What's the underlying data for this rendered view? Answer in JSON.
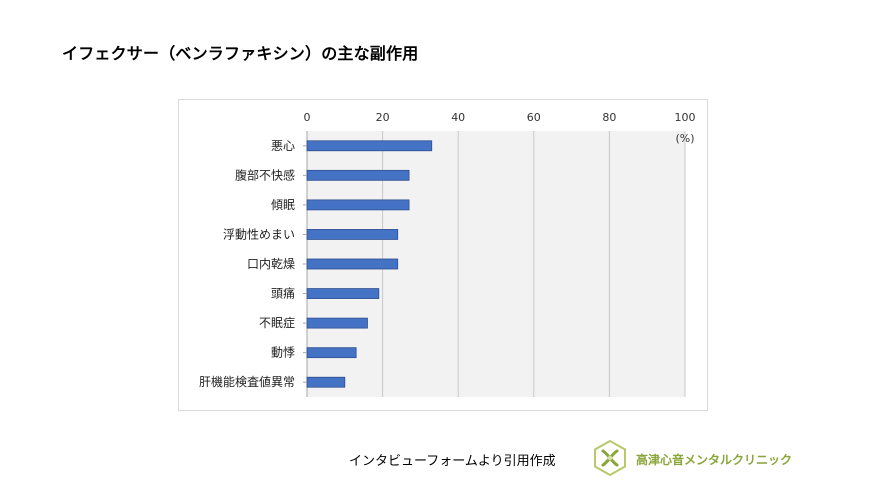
{
  "page_title": "イフェクサー（ベンラファキシン）の主な副作用",
  "source_text": "インタビューフォームより引用作成",
  "clinic_name": "高津心音メンタルクリニック",
  "colors": {
    "bar_fill": "#4472c4",
    "bar_stroke": "#2f4f8f",
    "plot_bg": "#f2f2f2",
    "grid": "#c8c8c8",
    "brand": "#8aa63a"
  },
  "chart_data": {
    "type": "bar",
    "orientation": "horizontal",
    "title": "",
    "unit_label": "(%)",
    "xlim": [
      0,
      100
    ],
    "xticks": [
      0,
      20,
      40,
      60,
      80,
      100
    ],
    "grid": true,
    "categories": [
      "悪心",
      "腹部不快感",
      "傾眠",
      "浮動性めまい",
      "口内乾燥",
      "頭痛",
      "不眠症",
      "動悸",
      "肝機能検査値異常"
    ],
    "values": [
      33,
      27,
      27,
      24,
      24,
      19,
      16,
      13,
      10
    ]
  }
}
